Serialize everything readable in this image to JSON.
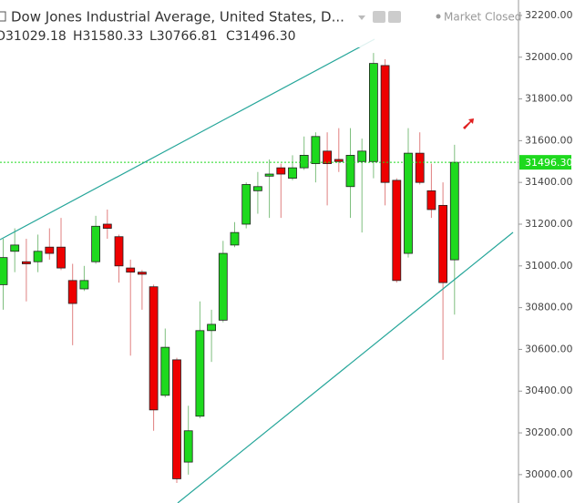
{
  "chart_data": {
    "type": "candlestick",
    "title": "Dow Jones Industrial Average, United States, D...",
    "status": "Market Closed",
    "ohlc_labels": [
      "O31029.18",
      "H31580.33",
      "L30766.81",
      "C31496.30"
    ],
    "open": [
      30910,
      31070,
      31020,
      31020,
      31090,
      31090,
      30930,
      30890,
      31020,
      31200,
      31140,
      30990,
      30970,
      30900,
      30380,
      30550,
      30060,
      30280,
      30690,
      30740,
      31100,
      31200,
      31360,
      31430,
      31470,
      31420,
      31470,
      31490,
      31550,
      31510,
      31380,
      31500,
      31500,
      31960,
      31410,
      31060,
      31540,
      31360,
      31290,
      31029.18
    ],
    "high": [
      31130,
      31180,
      31130,
      31150,
      31180,
      31230,
      31010,
      31000,
      31240,
      31270,
      31150,
      31030,
      30980,
      30910,
      30700,
      30560,
      30330,
      30830,
      30790,
      31120,
      31210,
      31400,
      31450,
      31510,
      31490,
      31530,
      31620,
      31640,
      31640,
      31660,
      31660,
      31610,
      32020,
      31990,
      31420,
      31660,
      31640,
      31490,
      31400,
      31580.33
    ],
    "low": [
      30790,
      30970,
      30830,
      30970,
      31030,
      30980,
      30620,
      30880,
      31010,
      31130,
      30920,
      30570,
      30790,
      30210,
      30370,
      29960,
      30000,
      30270,
      30540,
      30730,
      31090,
      31180,
      31250,
      31230,
      31230,
      31410,
      31460,
      31400,
      31290,
      31450,
      31230,
      31160,
      31420,
      31290,
      30920,
      31040,
      31390,
      31230,
      30550,
      30766.81
    ],
    "close": [
      31040,
      31100,
      31010,
      31070,
      31060,
      30990,
      30820,
      30930,
      31190,
      31180,
      31000,
      30970,
      30960,
      30310,
      30610,
      29980,
      30210,
      30690,
      30720,
      31060,
      31160,
      31390,
      31380,
      31440,
      31440,
      31470,
      31530,
      31620,
      31490,
      31500,
      31530,
      31550,
      31970,
      31400,
      30930,
      31540,
      31400,
      31270,
      30920,
      31496.3
    ],
    "up_color": "#1ed91e",
    "down_color": "#ee0000",
    "last_price": {
      "value": 31496.3,
      "label": "31496.30"
    },
    "ylim": [
      29864,
      32274
    ],
    "yticks": [
      {
        "value": 30000,
        "label": "30000.00"
      },
      {
        "value": 30200,
        "label": "30200.00"
      },
      {
        "value": 30400,
        "label": "30400.00"
      },
      {
        "value": 30600,
        "label": "30600.00"
      },
      {
        "value": 30800,
        "label": "30800.00"
      },
      {
        "value": 31000,
        "label": "31000.00"
      },
      {
        "value": 31200,
        "label": "31200.00"
      },
      {
        "value": 31400,
        "label": "31400.00"
      },
      {
        "value": 31600,
        "label": "31600.00"
      },
      {
        "value": 31800,
        "label": "31800.00"
      },
      {
        "value": 32000,
        "label": "32000.00"
      },
      {
        "value": 32200,
        "label": "32200.00"
      }
    ]
  }
}
